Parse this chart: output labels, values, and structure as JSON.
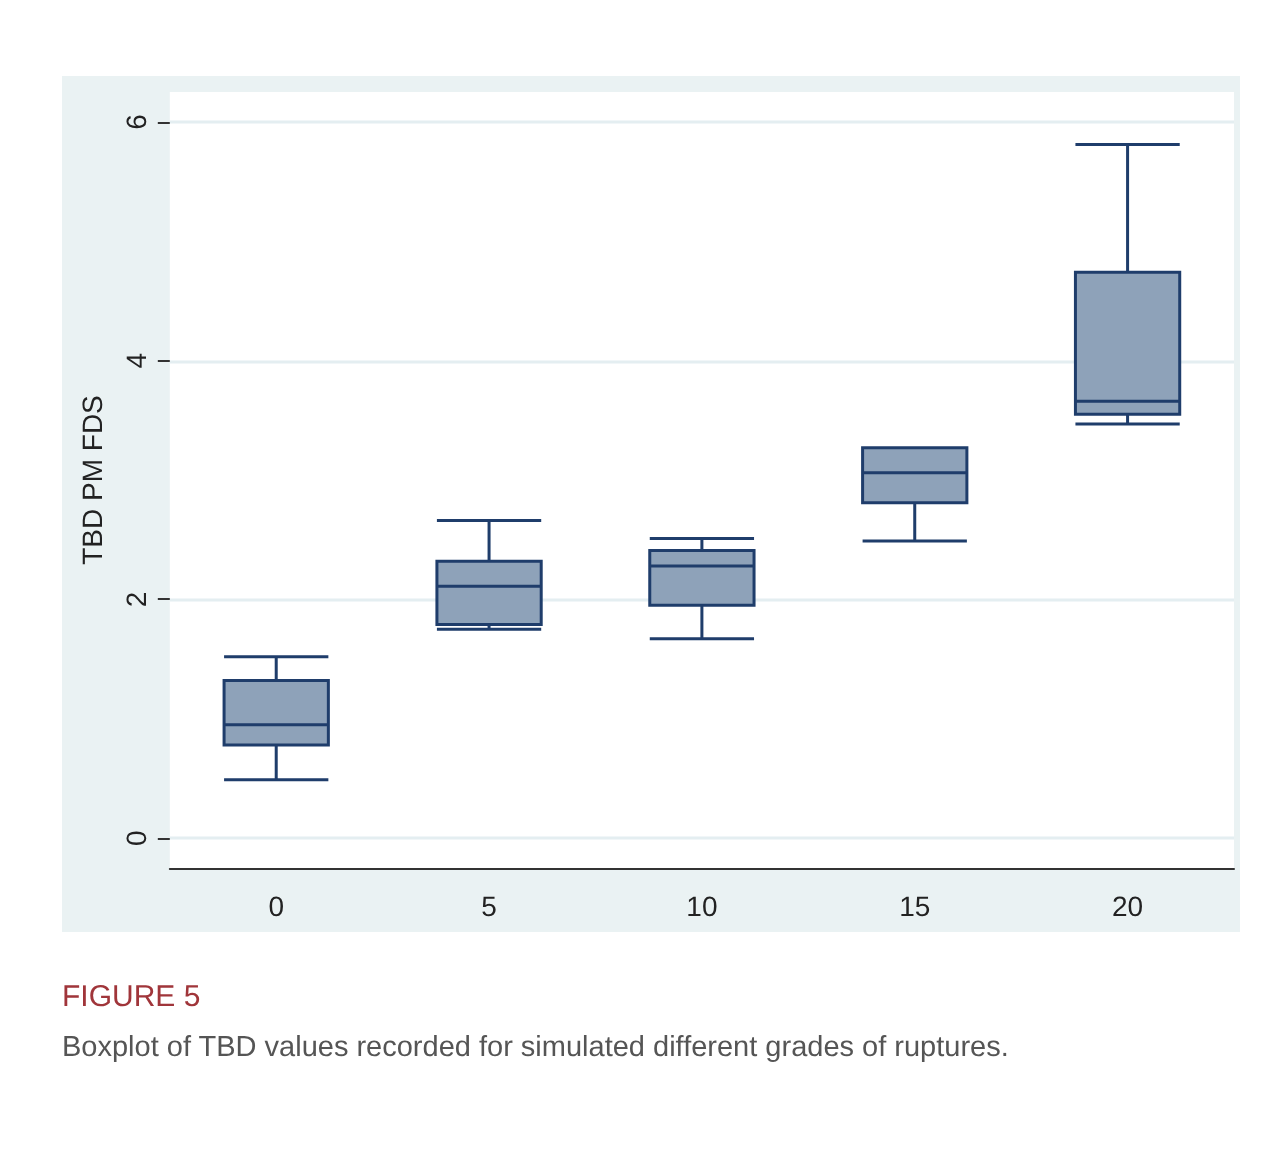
{
  "chart_data": {
    "type": "box",
    "ylabel": "TBD PM FDS",
    "categories": [
      "0",
      "5",
      "10",
      "15",
      "20"
    ],
    "series": [
      {
        "color": "#8ea2b9",
        "boxes": [
          {
            "low": 0.49,
            "q1": 0.78,
            "median": 0.95,
            "q3": 1.32,
            "high": 1.52
          },
          {
            "low": 1.75,
            "q1": 1.79,
            "median": 2.11,
            "q3": 2.32,
            "high": 2.66
          },
          {
            "low": 1.67,
            "q1": 1.95,
            "median": 2.28,
            "q3": 2.41,
            "high": 2.51
          },
          {
            "low": 2.49,
            "q1": 2.81,
            "median": 3.06,
            "q3": 3.27,
            "high": 3.27
          },
          {
            "low": 3.47,
            "q1": 3.55,
            "median": 3.66,
            "q3": 4.74,
            "high": 5.81
          }
        ]
      }
    ],
    "ylim": [
      -0.25,
      6.25
    ],
    "yticks": [
      0,
      2,
      4,
      6
    ],
    "grid": "y",
    "annotations": [
      "FIGURE 5",
      "Boxplot of TBD values recorded for simulated different grades of ruptures."
    ]
  }
}
